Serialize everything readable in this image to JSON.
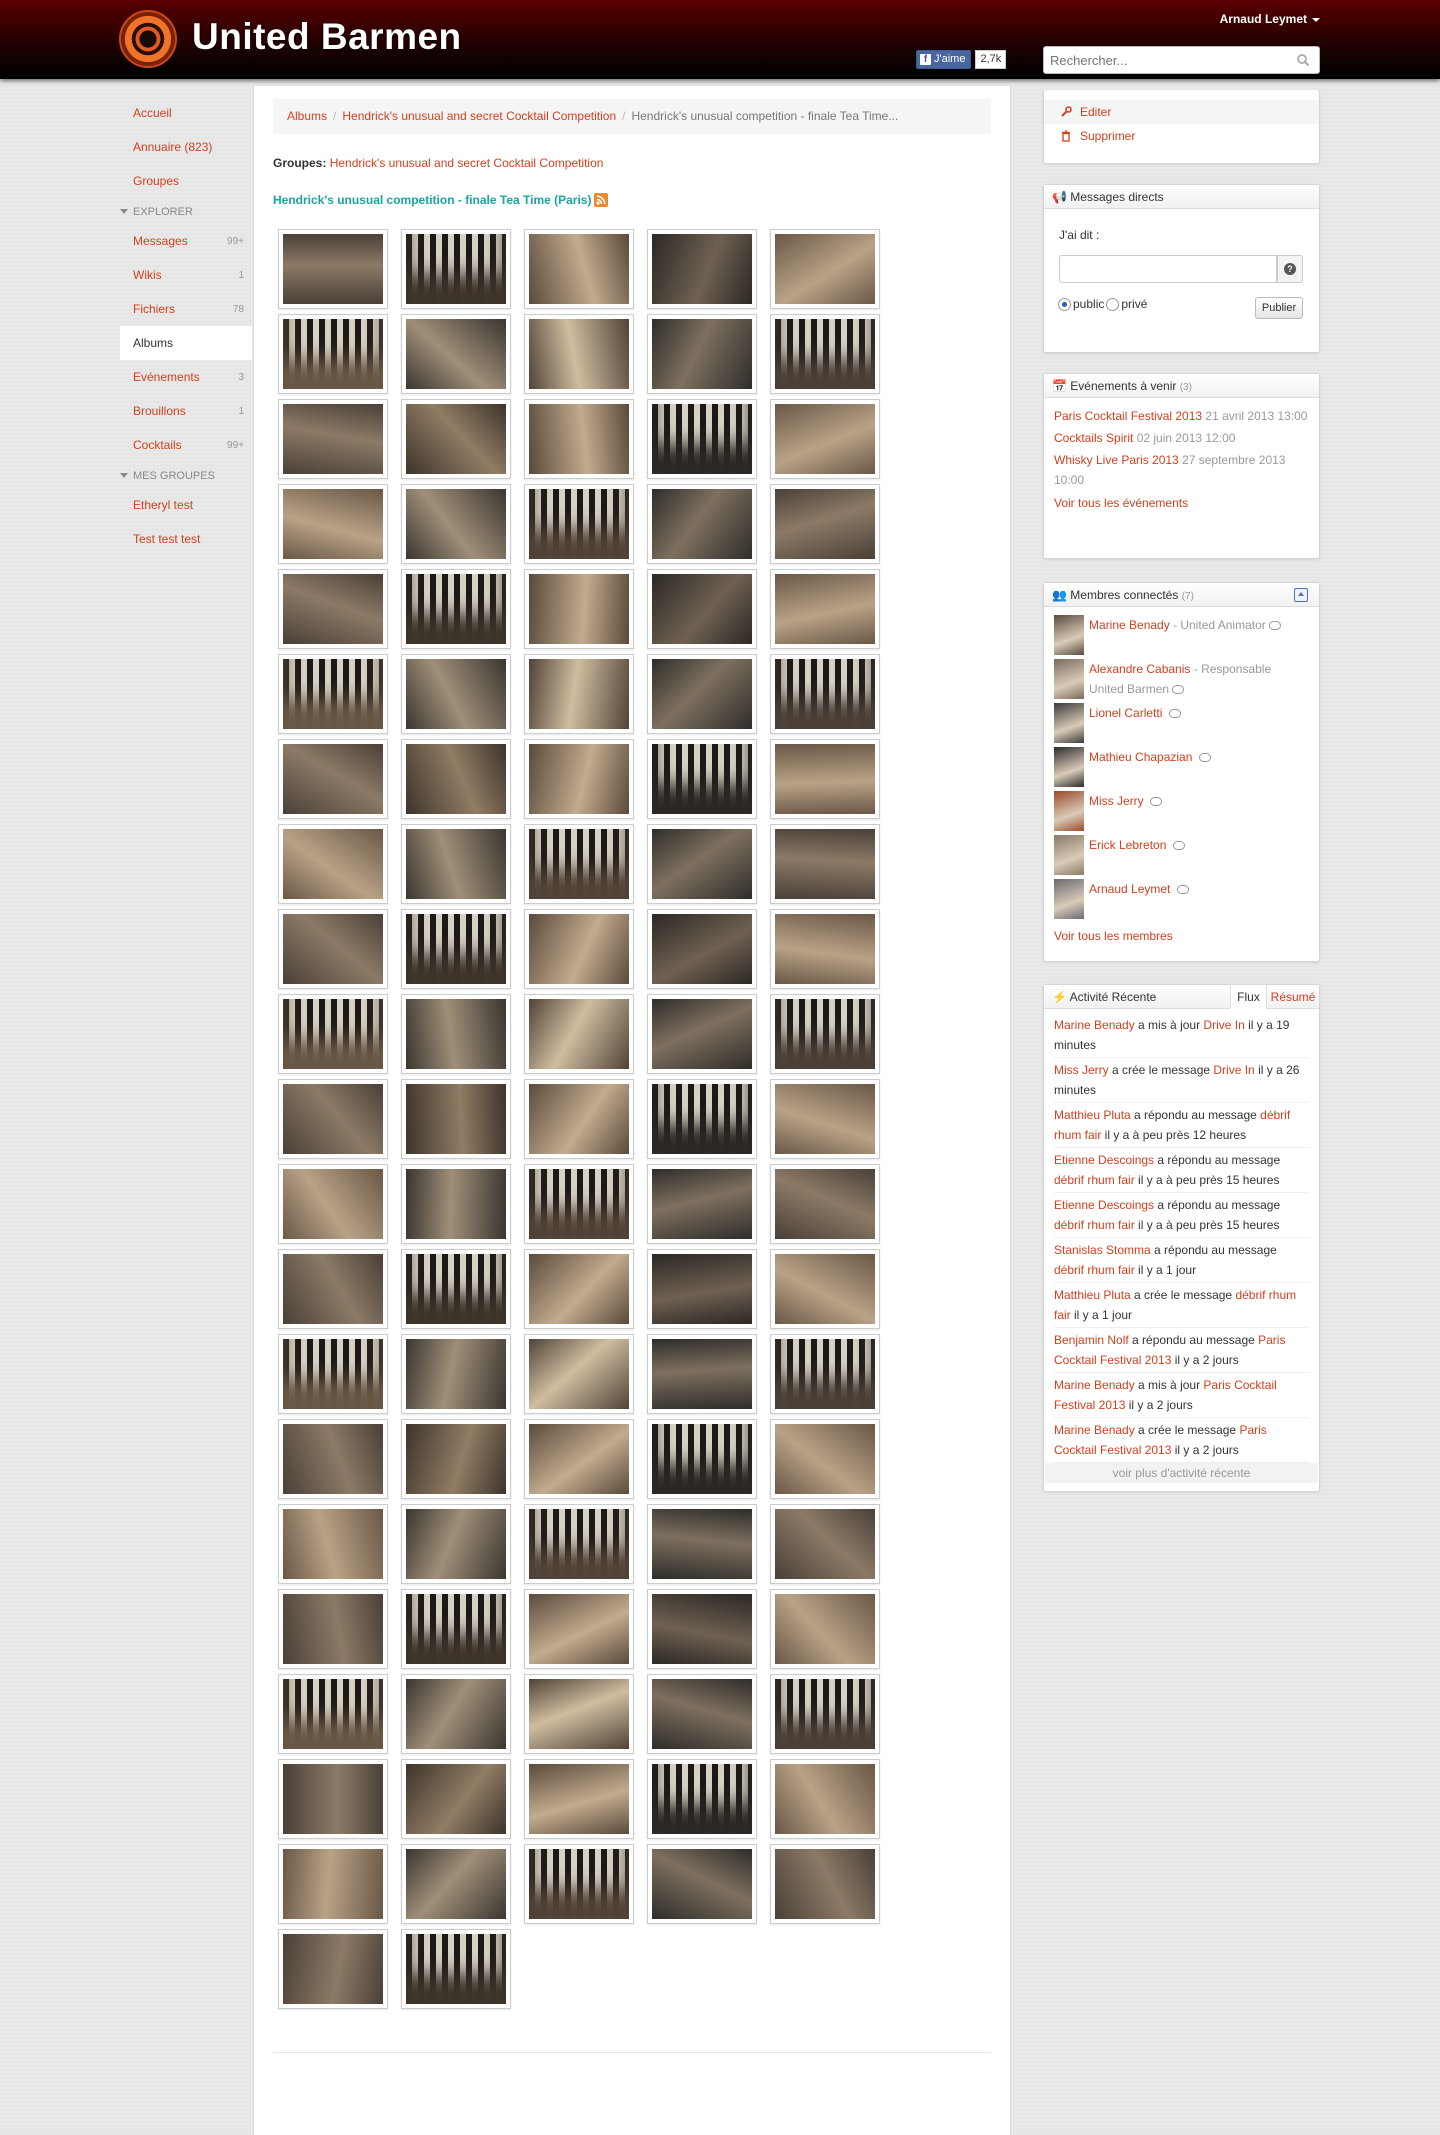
{
  "header": {
    "brand": "United Barmen",
    "user_name": "Arnaud Leymet",
    "fb_like_label": "J'aime",
    "fb_like_count": "2,7k",
    "search_placeholder": "Rechercher..."
  },
  "sidebar": {
    "items": [
      {
        "label": "Accueil"
      },
      {
        "label": "Annuaire (823)"
      },
      {
        "label": "Groupes"
      }
    ],
    "explorer_header": "EXPLORER",
    "explorer_items": [
      {
        "label": "Messages",
        "count": "99+"
      },
      {
        "label": "Wikis",
        "count": "1"
      },
      {
        "label": "Fichiers",
        "count": "78"
      },
      {
        "label": "Albums",
        "count": ""
      },
      {
        "label": "Evénements",
        "count": "3"
      },
      {
        "label": "Brouillons",
        "count": "1"
      },
      {
        "label": "Cocktails",
        "count": "99+"
      }
    ],
    "groups_header": "MES GROUPES",
    "group_items": [
      {
        "label": "Etheryl test"
      },
      {
        "label": "Test test test"
      }
    ]
  },
  "main": {
    "breadcrumb": [
      "Albums",
      "Hendrick's unusual and secret Cocktail Competition",
      "Hendrick's unusual competition - finale Tea Time..."
    ],
    "groups_label": "Groupes:",
    "groups_value": "Hendrick's unusual and secret Cocktail Competition",
    "album_title": "Hendrick's unusual competition - finale Tea Time (Paris)",
    "photo_count": 102
  },
  "actions": {
    "edit": "Editer",
    "delete": "Supprimer"
  },
  "messages": {
    "title": "Messages directs",
    "label": "J'ai dit :",
    "public": "public",
    "private": "privé",
    "publish": "Publier"
  },
  "events": {
    "title": "Evénements à venir",
    "count": "(3)",
    "list": [
      {
        "name": "Paris Cocktail Festival 2013",
        "date": "21 avril 2013 13:00"
      },
      {
        "name": "Cocktails Spirit",
        "date": "02 juin 2013 12:00"
      },
      {
        "name": "Whisky Live Paris 2013",
        "date": "27 septembre 2013 10:00"
      }
    ],
    "see_all": "Voir tous les événements"
  },
  "members": {
    "title": "Membres connectés",
    "count": "(7)",
    "list": [
      {
        "name": "Marine Benady",
        "role": "- United Animator"
      },
      {
        "name": "Alexandre Cabanis",
        "role": "- Responsable United Barmen"
      },
      {
        "name": "Lionel Carletti",
        "role": ""
      },
      {
        "name": "Mathieu Chapazian",
        "role": ""
      },
      {
        "name": "Miss Jerry",
        "role": ""
      },
      {
        "name": "Erick Lebreton",
        "role": ""
      },
      {
        "name": "Arnaud Leymet",
        "role": ""
      }
    ],
    "see_all": "Voir tous les membres"
  },
  "activity": {
    "title": "Activité Récente",
    "tab_flux": "Flux",
    "tab_resume": "Résumé",
    "items": [
      {
        "who": "Marine Benady",
        "action": " a mis à jour ",
        "target": "Drive In",
        "time": " il y a 19 minutes"
      },
      {
        "who": "Miss Jerry",
        "action": " a crée le message ",
        "target": "Drive In",
        "time": " il y a 26 minutes"
      },
      {
        "who": "Matthieu Pluta",
        "action": " a répondu au message ",
        "target": "débrif rhum fair",
        "time": " il y a à peu près 12 heures"
      },
      {
        "who": "Etienne Descoings",
        "action": " a répondu au message ",
        "target": "débrif rhum fair",
        "time": " il y a à peu près 15 heures"
      },
      {
        "who": "Etienne Descoings",
        "action": " a répondu au message ",
        "target": "débrif rhum fair",
        "time": " il y a à peu près 15 heures"
      },
      {
        "who": "Stanislas Stomma",
        "action": " a répondu au message ",
        "target": "débrif rhum fair",
        "time": " il y a 1 jour"
      },
      {
        "who": "Matthieu Pluta",
        "action": " a crée le message ",
        "target": "débrif rhum fair",
        "time": " il y a 1 jour"
      },
      {
        "who": "Benjamin Nolf",
        "action": " a répondu au message ",
        "target": "Paris Cocktail Festival 2013",
        "time": " il y a 2 jours"
      },
      {
        "who": "Marine Benady",
        "action": " a mis à jour ",
        "target": "Paris Cocktail Festival 2013",
        "time": " il y a 2 jours"
      },
      {
        "who": "Marine Benady",
        "action": " a crée le message ",
        "target": "Paris Cocktail Festival 2013",
        "time": " il y a 2 jours"
      }
    ],
    "more": "voir plus d'activité récente"
  },
  "colors": {
    "link": "#d2401e",
    "album_title": "#1aa5a0",
    "header_top": "#5a0000"
  }
}
